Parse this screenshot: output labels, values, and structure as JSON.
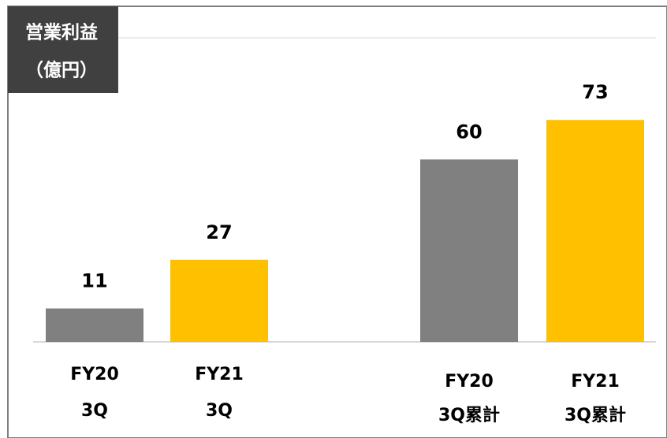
{
  "chart_data": {
    "type": "bar",
    "y_label": [
      "営業利益",
      "（億円）"
    ],
    "categories": [
      [
        "FY20",
        "3Q"
      ],
      [
        "FY21",
        "3Q"
      ],
      [
        "FY20",
        "3Q累計"
      ],
      [
        "FY21",
        "3Q累計"
      ]
    ],
    "values": [
      11,
      27,
      60,
      73
    ],
    "colors": [
      "#808080",
      "#ffc000",
      "#808080",
      "#ffc000"
    ],
    "ylim": [
      0,
      100
    ]
  }
}
